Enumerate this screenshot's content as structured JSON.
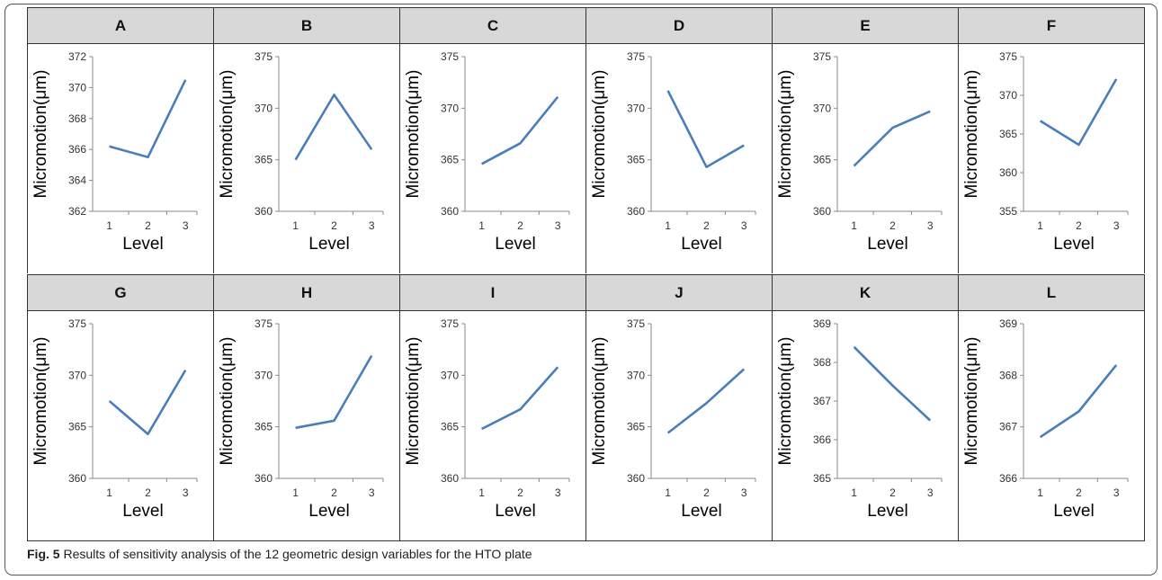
{
  "caption": {
    "label": "Fig. 5",
    "text": "Results of sensitivity analysis of the 12 geometric design variables for the HTO plate"
  },
  "line_color": "#4a7ebb",
  "chart_data": [
    {
      "type": "line",
      "title": "A",
      "xlabel": "Level",
      "ylabel": "Micromotion(μm)",
      "categories": [
        "1",
        "2",
        "3"
      ],
      "values": [
        366.2,
        365.5,
        370.5
      ],
      "ylim": [
        362,
        372
      ],
      "yticks": [
        362,
        364,
        366,
        368,
        370,
        372
      ]
    },
    {
      "type": "line",
      "title": "B",
      "xlabel": "Level",
      "ylabel": "Micromotion(μm)",
      "categories": [
        "1",
        "2",
        "3"
      ],
      "values": [
        365.0,
        371.3,
        366.0
      ],
      "ylim": [
        360,
        375
      ],
      "yticks": [
        360,
        365,
        370,
        375
      ]
    },
    {
      "type": "line",
      "title": "C",
      "xlabel": "Level",
      "ylabel": "Micromotion(μm)",
      "categories": [
        "1",
        "2",
        "3"
      ],
      "values": [
        364.6,
        366.6,
        371.1
      ],
      "ylim": [
        360,
        375
      ],
      "yticks": [
        360,
        365,
        370,
        375
      ]
    },
    {
      "type": "line",
      "title": "D",
      "xlabel": "Level",
      "ylabel": "Micromotion(μm)",
      "categories": [
        "1",
        "2",
        "3"
      ],
      "values": [
        371.7,
        364.3,
        366.4
      ],
      "ylim": [
        360,
        375
      ],
      "yticks": [
        360,
        365,
        370,
        375
      ]
    },
    {
      "type": "line",
      "title": "E",
      "xlabel": "Level",
      "ylabel": "Micromotion(μm)",
      "categories": [
        "1",
        "2",
        "3"
      ],
      "values": [
        364.4,
        368.1,
        369.7
      ],
      "ylim": [
        360,
        375
      ],
      "yticks": [
        360,
        365,
        370,
        375
      ]
    },
    {
      "type": "line",
      "title": "F",
      "xlabel": "Level",
      "ylabel": "Micromotion(μm)",
      "categories": [
        "1",
        "2",
        "3"
      ],
      "values": [
        366.7,
        363.6,
        372.1
      ],
      "ylim": [
        355,
        375
      ],
      "yticks": [
        355,
        360,
        365,
        370,
        375
      ]
    },
    {
      "type": "line",
      "title": "G",
      "xlabel": "Level",
      "ylabel": "Micromotion(μm)",
      "categories": [
        "1",
        "2",
        "3"
      ],
      "values": [
        367.5,
        364.3,
        370.5
      ],
      "ylim": [
        360,
        375
      ],
      "yticks": [
        360,
        365,
        370,
        375
      ]
    },
    {
      "type": "line",
      "title": "H",
      "xlabel": "Level",
      "ylabel": "Micromotion(μm)",
      "categories": [
        "1",
        "2",
        "3"
      ],
      "values": [
        364.9,
        365.6,
        371.9
      ],
      "ylim": [
        360,
        375
      ],
      "yticks": [
        360,
        365,
        370,
        375
      ]
    },
    {
      "type": "line",
      "title": "I",
      "xlabel": "Level",
      "ylabel": "Micromotion(μm)",
      "categories": [
        "1",
        "2",
        "3"
      ],
      "values": [
        364.8,
        366.7,
        370.8
      ],
      "ylim": [
        360,
        375
      ],
      "yticks": [
        360,
        365,
        370,
        375
      ]
    },
    {
      "type": "line",
      "title": "J",
      "xlabel": "Level",
      "ylabel": "Micromotion(μm)",
      "categories": [
        "1",
        "2",
        "3"
      ],
      "values": [
        364.4,
        367.3,
        370.6
      ],
      "ylim": [
        360,
        375
      ],
      "yticks": [
        360,
        365,
        370,
        375
      ]
    },
    {
      "type": "line",
      "title": "K",
      "xlabel": "Level",
      "ylabel": "Micromotion(μm)",
      "categories": [
        "1",
        "2",
        "3"
      ],
      "values": [
        368.4,
        367.4,
        366.5
      ],
      "ylim": [
        365,
        369
      ],
      "yticks": [
        365,
        366,
        367,
        368,
        369
      ]
    },
    {
      "type": "line",
      "title": "L",
      "xlabel": "Level",
      "ylabel": "Micromotion(μm)",
      "categories": [
        "1",
        "2",
        "3"
      ],
      "values": [
        366.8,
        367.3,
        368.2
      ],
      "ylim": [
        366,
        369
      ],
      "yticks": [
        366,
        367,
        368,
        369
      ]
    }
  ]
}
